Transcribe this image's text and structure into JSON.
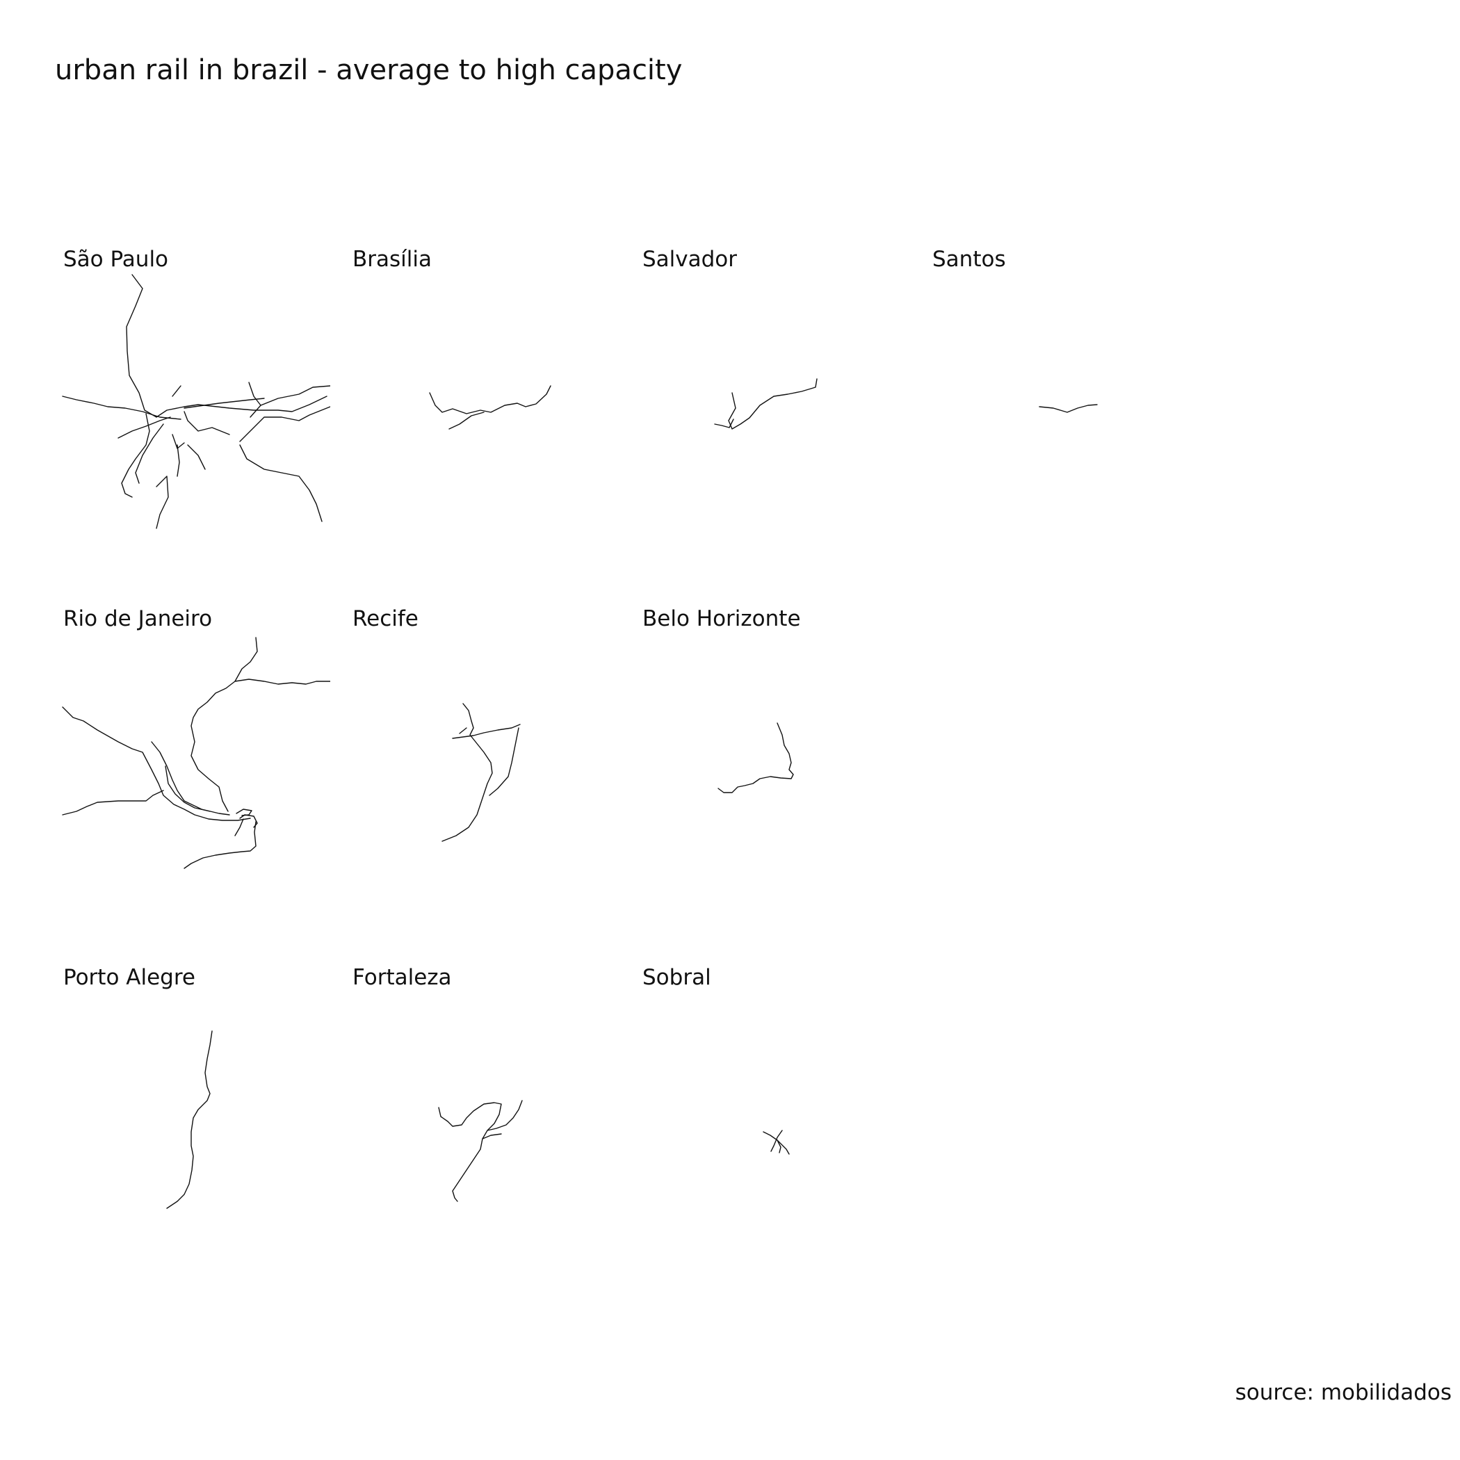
{
  "title": "urban rail in brazil - average to high capacity",
  "source": "source: mobilidados",
  "cities": [
    {
      "name": "São Paulo",
      "icon": "sao-paulo-rail-network-map-icon"
    },
    {
      "name": "Brasília",
      "icon": "brasilia-rail-network-map-icon"
    },
    {
      "name": "Salvador",
      "icon": "salvador-rail-network-map-icon"
    },
    {
      "name": "Santos",
      "icon": "santos-rail-network-map-icon"
    },
    {
      "name": "Rio de Janeiro",
      "icon": "rio-de-janeiro-rail-network-map-icon"
    },
    {
      "name": "Recife",
      "icon": "recife-rail-network-map-icon"
    },
    {
      "name": "Belo Horizonte",
      "icon": "belo-horizonte-rail-network-map-icon"
    },
    {
      "name": "Porto Alegre",
      "icon": "porto-alegre-rail-network-map-icon"
    },
    {
      "name": "Fortaleza",
      "icon": "fortaleza-rail-network-map-icon"
    },
    {
      "name": "Sobral",
      "icon": "sobral-rail-network-map-icon"
    }
  ]
}
